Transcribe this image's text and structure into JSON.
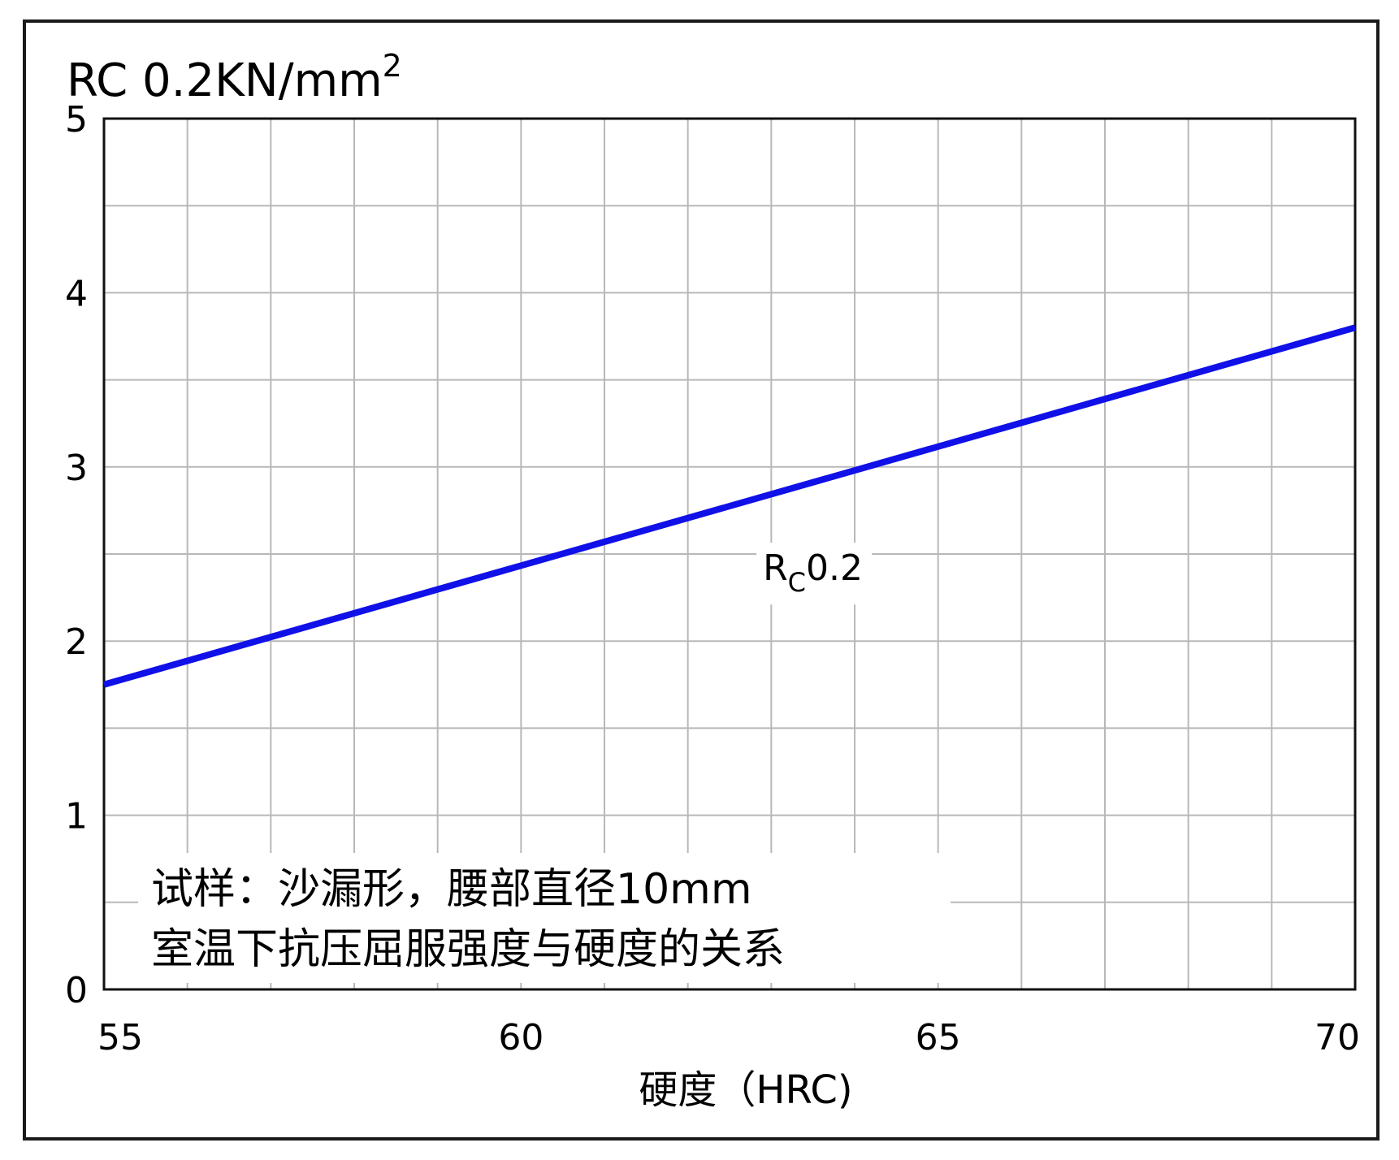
{
  "chart_data": {
    "type": "line",
    "ylabel_main": "RC 0.2KN/mm",
    "ylabel_sup": "2",
    "xlabel": "硬度（HRC)",
    "xlim": [
      55,
      70
    ],
    "ylim": [
      0,
      5
    ],
    "x_ticks": [
      "55",
      "60",
      "65",
      "70"
    ],
    "y_ticks": [
      "0",
      "1",
      "2",
      "3",
      "4",
      "5"
    ],
    "grid": true,
    "series": [
      {
        "label_main": "R",
        "label_sub": "C",
        "label_rest": "0.2",
        "color": "#1010e8",
        "x": [
          55,
          70
        ],
        "y": [
          1.75,
          3.8
        ]
      }
    ],
    "annotations": [
      "试样：沙漏形，腰部直径10mm",
      "室温下抗压屈服强度与硬度的关系"
    ]
  }
}
